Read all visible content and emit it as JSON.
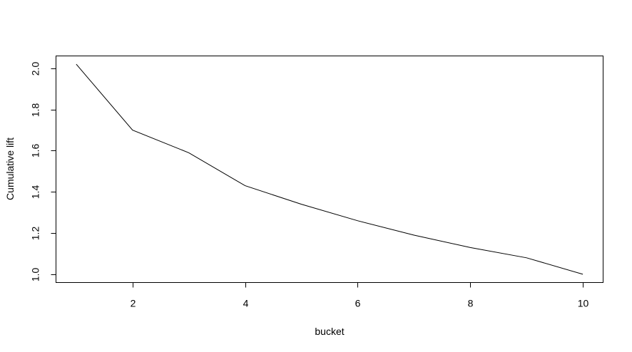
{
  "chart_data": {
    "type": "line",
    "title": "",
    "xlabel": "bucket",
    "ylabel": "Cumulative lift",
    "x": [
      1,
      2,
      3,
      4,
      5,
      6,
      7,
      8,
      9,
      10
    ],
    "series": [
      {
        "name": "Cumulative lift",
        "values": [
          2.02,
          1.7,
          1.59,
          1.43,
          1.34,
          1.26,
          1.19,
          1.13,
          1.08,
          1.0
        ]
      }
    ],
    "xlim": [
      0.64,
      10.36
    ],
    "ylim": [
      0.96,
      2.06
    ],
    "x_ticks": [
      2,
      4,
      6,
      8,
      10
    ],
    "x_tick_labels": [
      "2",
      "4",
      "6",
      "8",
      "10"
    ],
    "y_ticks": [
      1.0,
      1.2,
      1.4,
      1.6,
      1.8,
      2.0
    ],
    "y_tick_labels": [
      "1.0",
      "1.2",
      "1.4",
      "1.6",
      "1.8",
      "2.0"
    ],
    "grid": false,
    "line_color": "#000000"
  }
}
